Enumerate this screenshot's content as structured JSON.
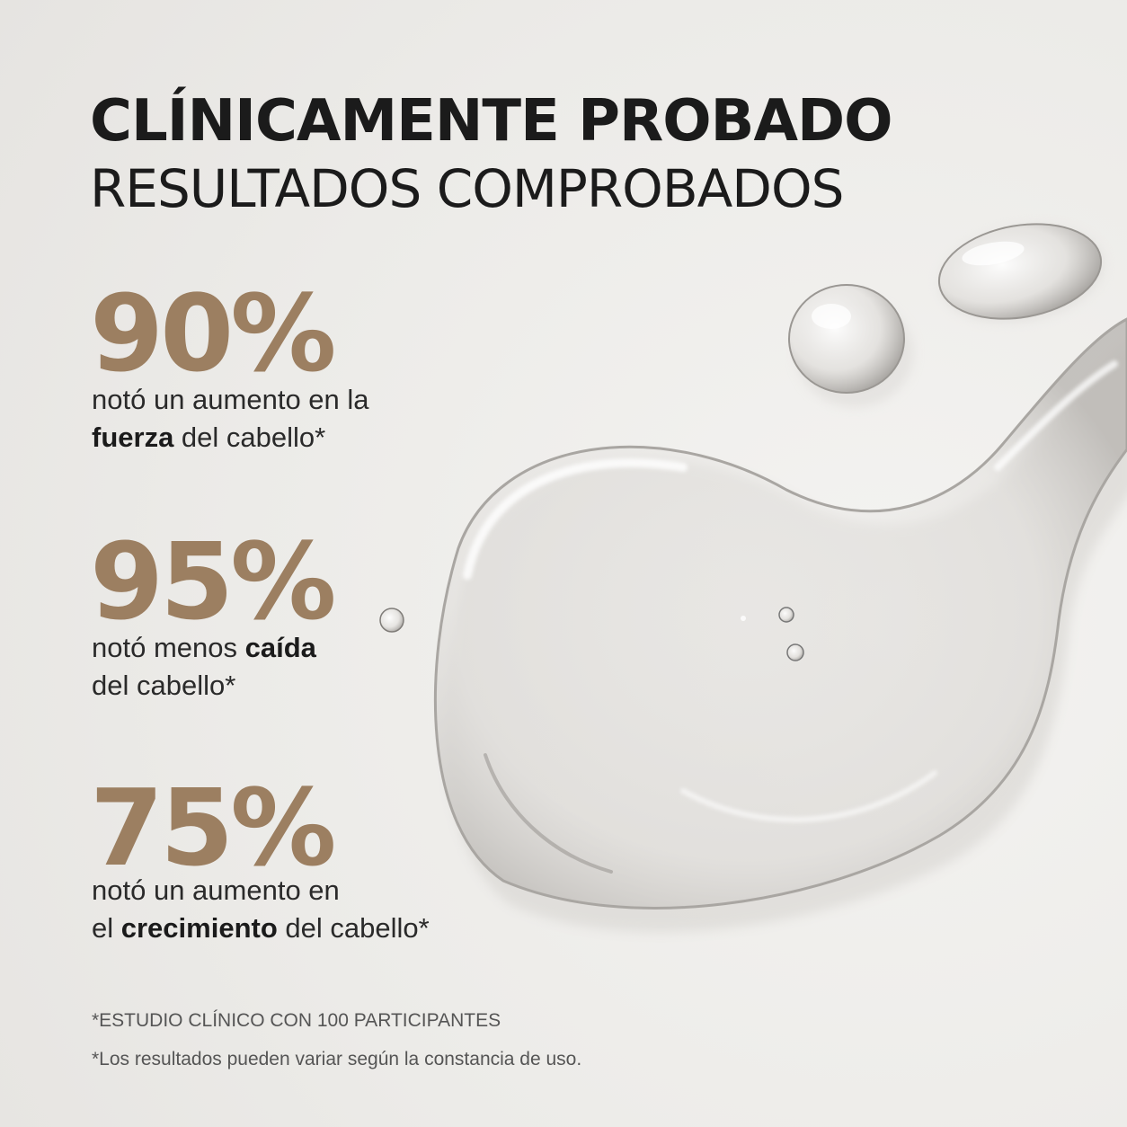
{
  "headline": {
    "title": "CLÍNICAMENTE PROBADO",
    "subtitle": "RESULTADOS COMPROBADOS"
  },
  "stats": [
    {
      "value": "90%",
      "line1_pre": "notó un aumento en la",
      "line2_bold": "fuerza",
      "line2_post": " del cabello*"
    },
    {
      "value": "95%",
      "line1_pre": "notó menos ",
      "line1_bold": "caída",
      "line2_post": "del cabello*"
    },
    {
      "value": "75%",
      "line1_pre": "notó un aumento en",
      "line2_pre": "el ",
      "line2_bold": "crecimiento",
      "line2_post": " del cabello*"
    }
  ],
  "footnotes": {
    "study": "*ESTUDIO CLÍNICO CON 100 PARTICIPANTES",
    "disclaimer": "*Los resultados pueden variar según la constancia de uso."
  },
  "colors": {
    "background": "#efedeb",
    "accent": "#9c7f61",
    "text": "#1b1b1b"
  },
  "image": "clear-serum-droplets"
}
